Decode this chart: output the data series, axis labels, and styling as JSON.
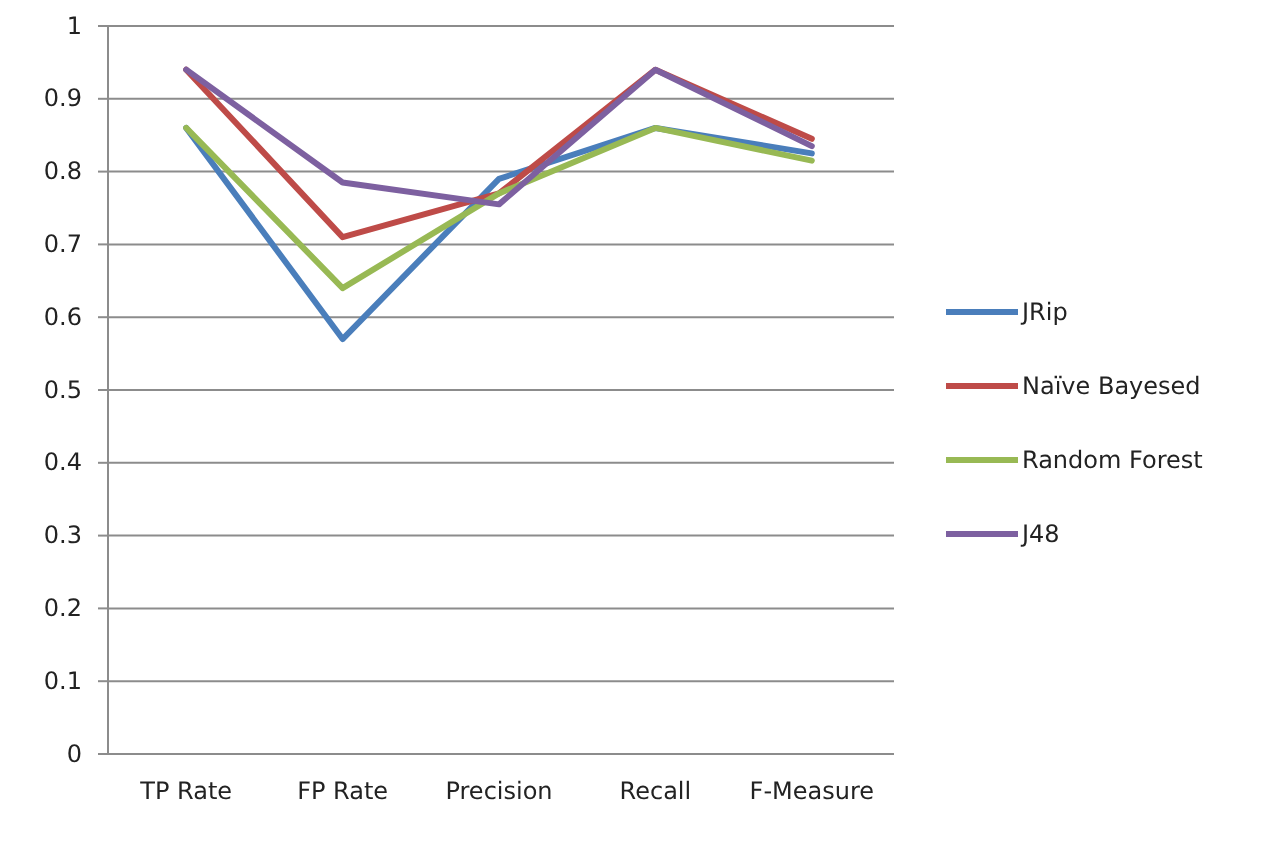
{
  "chart_data": {
    "type": "line",
    "categories": [
      "TP Rate",
      "FP Rate",
      "Precision",
      "Recall",
      "F-Measure"
    ],
    "series": [
      {
        "name": "JRip",
        "color": "#4a7ebb",
        "values": [
          0.86,
          0.57,
          0.79,
          0.86,
          0.825
        ]
      },
      {
        "name": "Naïve Bayesed",
        "color": "#be4b48",
        "values": [
          0.94,
          0.71,
          0.77,
          0.94,
          0.845
        ]
      },
      {
        "name": "Random Forest",
        "color": "#98b954",
        "values": [
          0.86,
          0.64,
          0.77,
          0.86,
          0.815
        ]
      },
      {
        "name": "J48",
        "color": "#7d60a0",
        "values": [
          0.94,
          0.785,
          0.755,
          0.94,
          0.835
        ]
      }
    ],
    "ylim": [
      0,
      1
    ],
    "yticks": [
      0,
      0.1,
      0.2,
      0.3,
      0.4,
      0.5,
      0.6,
      0.7,
      0.8,
      0.9,
      1
    ],
    "grid": "y",
    "legend": "right",
    "marker": "none"
  }
}
